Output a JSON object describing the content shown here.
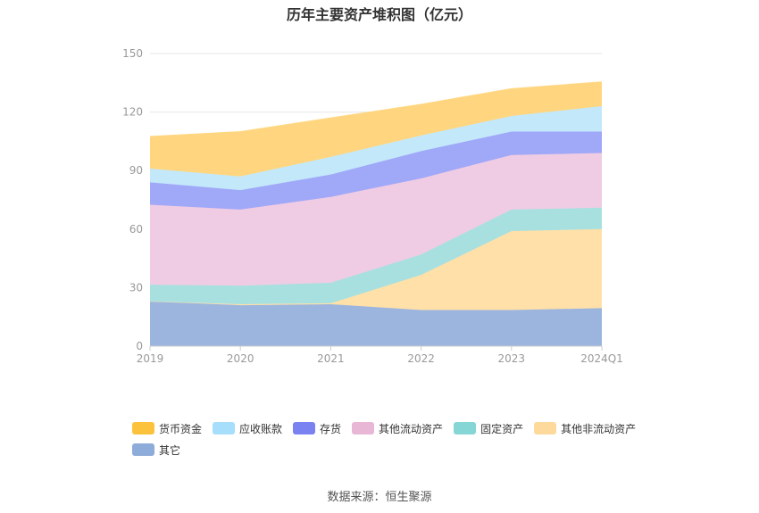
{
  "chart_data": {
    "type": "area",
    "stacked": true,
    "title": "历年主要资产堆积图（亿元）",
    "categories": [
      "2019",
      "2020",
      "2021",
      "2022",
      "2023",
      "2024Q1"
    ],
    "y_ticks": [
      "0",
      "30",
      "60",
      "90",
      "120",
      "150"
    ],
    "ylim": [
      0,
      150
    ],
    "grid": true,
    "legend_position": "bottom-left",
    "series": [
      {
        "name": "其它",
        "color": "#9bb5df",
        "values": [
          23,
          21,
          21.5,
          18.5,
          18.5,
          19.5
        ]
      },
      {
        "name": "其他非流动资产",
        "color": "#ffe0a8",
        "values": [
          0,
          0.5,
          0.5,
          18,
          40.5,
          40.5
        ]
      },
      {
        "name": "固定资产",
        "color": "#a8e0e0",
        "values": [
          8.5,
          9.5,
          10.5,
          10.5,
          11,
          11
        ]
      },
      {
        "name": "其他流动资产",
        "color": "#efcce3",
        "values": [
          41,
          39,
          44,
          39,
          28,
          28
        ]
      },
      {
        "name": "存货",
        "color": "#a0a8f8",
        "values": [
          11.5,
          10,
          11.5,
          14,
          12,
          11
        ]
      },
      {
        "name": "应收账款",
        "color": "#c3e8fa",
        "values": [
          7,
          7,
          9,
          8,
          8,
          13
        ]
      },
      {
        "name": "货币资金",
        "color": "#ffd67f",
        "values": [
          16.5,
          23,
          20,
          16,
          14,
          12.5
        ]
      }
    ],
    "legend": [
      {
        "name": "货币资金",
        "color": "#fcc23c"
      },
      {
        "name": "应收账款",
        "color": "#a6defb"
      },
      {
        "name": "存货",
        "color": "#7a82f2"
      },
      {
        "name": "其他流动资产",
        "color": "#e8b7d6"
      },
      {
        "name": "固定资产",
        "color": "#86d6d6"
      },
      {
        "name": "其他非流动资产",
        "color": "#fdd99b"
      },
      {
        "name": "其它",
        "color": "#8eacd9"
      }
    ]
  },
  "source_text": "数据来源：恒生聚源"
}
